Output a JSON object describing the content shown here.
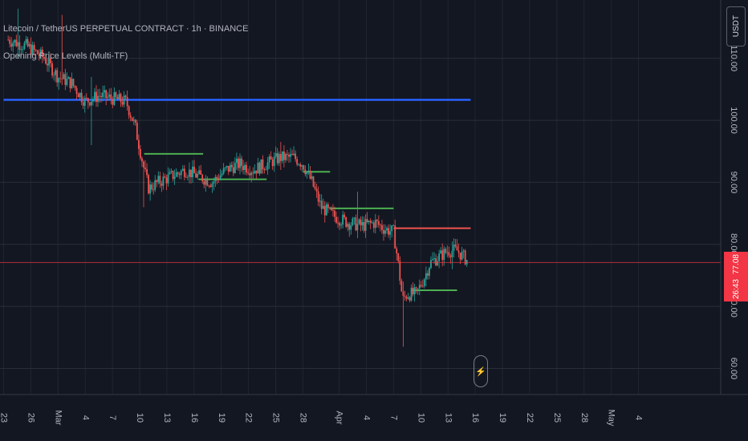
{
  "header": {
    "symbol_title": "Litecoin / TetherUS PERPETUAL CONTRACT · 1h · BINANCE",
    "indicator_title": "Opening Price Levels (Multi-TF)"
  },
  "currency_label": "USDT",
  "price_badge": {
    "price": "77.08",
    "countdown": "26:43",
    "color": "#f23645"
  },
  "colors": {
    "background": "#131722",
    "grid": "#2a2e39",
    "candle_up": "#26a69a",
    "candle_down": "#ef5350",
    "level_blue": "#2962ff",
    "level_green": "#4caf50",
    "level_red": "#ef5350",
    "current_price_line": "#f23645"
  },
  "icons": {
    "replay": "lightning-icon"
  },
  "replay_glyph": "⚡",
  "chart_data": {
    "type": "candlestick",
    "title": "Litecoin / TetherUS PERPETUAL CONTRACT · 1h · BINANCE",
    "ylabel": "",
    "xlabel": "",
    "ylim": [
      55.8,
      119.4
    ],
    "y_ticks": [
      60,
      70,
      80,
      90,
      100,
      110
    ],
    "y_tick_labels": [
      "60.00",
      "70.00",
      "80.00",
      "90.00",
      "100.00",
      "110.00"
    ],
    "x_ticks": [
      {
        "label": "23",
        "day": 0
      },
      {
        "label": "26",
        "day": 3
      },
      {
        "label": "Mar",
        "day": 6
      },
      {
        "label": "4",
        "day": 9
      },
      {
        "label": "7",
        "day": 12
      },
      {
        "label": "10",
        "day": 15
      },
      {
        "label": "13",
        "day": 18
      },
      {
        "label": "16",
        "day": 21
      },
      {
        "label": "19",
        "day": 24
      },
      {
        "label": "22",
        "day": 27
      },
      {
        "label": "25",
        "day": 30
      },
      {
        "label": "28",
        "day": 33
      },
      {
        "label": "Apr",
        "day": 37
      },
      {
        "label": "4",
        "day": 40
      },
      {
        "label": "7",
        "day": 43
      },
      {
        "label": "10",
        "day": 46
      },
      {
        "label": "13",
        "day": 49
      },
      {
        "label": "16",
        "day": 52
      },
      {
        "label": "19",
        "day": 55
      },
      {
        "label": "22",
        "day": 58
      },
      {
        "label": "25",
        "day": 61
      },
      {
        "label": "28",
        "day": 64
      },
      {
        "label": "May",
        "day": 67
      },
      {
        "label": "4",
        "day": 70
      }
    ],
    "price_path": [
      [
        0.5,
        113
      ],
      [
        2.5,
        112
      ],
      [
        4.5,
        110
      ],
      [
        6.0,
        107
      ],
      [
        7.5,
        106
      ],
      [
        9.0,
        103
      ],
      [
        10.5,
        104
      ],
      [
        12.0,
        103.5
      ],
      [
        13.5,
        103
      ],
      [
        14.5,
        99
      ],
      [
        15.5,
        92
      ],
      [
        16.0,
        89
      ],
      [
        17.0,
        90
      ],
      [
        18.5,
        91
      ],
      [
        20.0,
        92
      ],
      [
        21.5,
        91
      ],
      [
        23.0,
        90
      ],
      [
        24.5,
        92
      ],
      [
        26.0,
        93
      ],
      [
        27.5,
        92
      ],
      [
        29.0,
        93
      ],
      [
        30.5,
        94
      ],
      [
        32.0,
        94
      ],
      [
        33.0,
        93
      ],
      [
        34.0,
        90
      ],
      [
        35.0,
        86
      ],
      [
        36.5,
        84.5
      ],
      [
        38.0,
        83.5
      ],
      [
        39.5,
        83
      ],
      [
        41.0,
        83.5
      ],
      [
        42.0,
        82.5
      ],
      [
        43.0,
        82
      ],
      [
        43.5,
        77
      ],
      [
        44.0,
        71
      ],
      [
        44.5,
        72
      ],
      [
        45.5,
        72
      ],
      [
        46.5,
        75
      ],
      [
        47.0,
        77
      ],
      [
        48.0,
        78
      ],
      [
        49.0,
        79
      ],
      [
        50.0,
        79
      ],
      [
        51.2,
        77.3
      ]
    ],
    "wick_extremes": [
      {
        "day": 1.5,
        "high": 118,
        "low": 110
      },
      {
        "day": 6.4,
        "high": 117,
        "low": 108
      },
      {
        "day": 9.6,
        "high": 107,
        "low": 96
      },
      {
        "day": 15.5,
        "high": 93,
        "low": 86
      },
      {
        "day": 30.5,
        "high": 96.5,
        "low": 92
      },
      {
        "day": 39.0,
        "high": 88.5,
        "low": 81
      },
      {
        "day": 44.1,
        "high": 74,
        "low": 63.5
      },
      {
        "day": 49.5,
        "high": 80.5,
        "low": 76
      }
    ],
    "opening_levels": [
      {
        "color": "blue",
        "price": 103.3,
        "x_start": 0,
        "x_end": 51.5
      },
      {
        "color": "green",
        "price": 94.6,
        "x_start": 15.5,
        "x_end": 22
      },
      {
        "color": "green",
        "price": 90.5,
        "x_start": 21.5,
        "x_end": 29
      },
      {
        "color": "green",
        "price": 91.7,
        "x_start": 33,
        "x_end": 36
      },
      {
        "color": "green",
        "price": 85.8,
        "x_start": 36,
        "x_end": 43
      },
      {
        "color": "red",
        "price": 82.6,
        "x_start": 43,
        "x_end": 51.5
      },
      {
        "color": "green",
        "price": 72.6,
        "x_start": 45,
        "x_end": 50
      }
    ],
    "current_price": 77.08
  }
}
